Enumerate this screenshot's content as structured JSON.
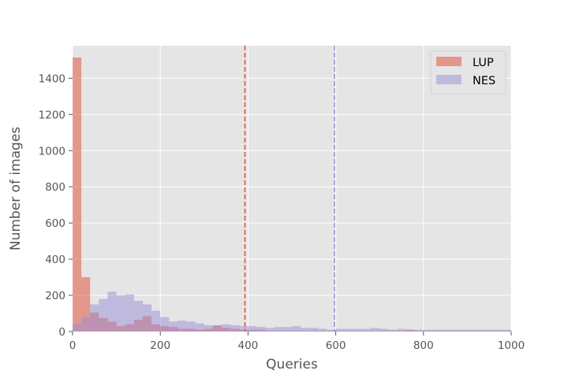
{
  "chart_data": {
    "type": "histogram",
    "xlabel": "Queries",
    "ylabel": "Number of images",
    "xlim": [
      0,
      1000
    ],
    "ylim": [
      0,
      1580
    ],
    "x_ticks": [
      0,
      200,
      400,
      600,
      800,
      1000
    ],
    "y_ticks": [
      0,
      200,
      400,
      600,
      800,
      1000,
      1200,
      1400
    ],
    "grid": true,
    "legend_position": "top-right",
    "bin_width": 20,
    "series": [
      {
        "name": "LUP",
        "color": "#E24A33",
        "opacity": 0.5,
        "bin_starts": [
          0,
          20,
          40,
          60,
          80,
          100,
          120,
          140,
          160,
          180,
          200,
          220,
          240,
          260,
          280,
          300,
          320,
          340,
          360,
          380,
          400,
          420,
          440,
          460,
          480,
          500,
          520,
          540,
          560,
          580,
          600,
          620,
          640,
          660,
          680,
          700,
          720,
          740,
          760,
          780,
          800,
          820,
          840,
          860,
          880,
          900,
          920,
          940,
          960,
          980
        ],
        "values": [
          1515,
          300,
          105,
          75,
          55,
          30,
          40,
          65,
          85,
          40,
          30,
          25,
          15,
          15,
          10,
          15,
          35,
          20,
          15,
          10,
          10,
          10,
          5,
          5,
          5,
          5,
          5,
          5,
          5,
          5,
          5,
          5,
          5,
          5,
          5,
          5,
          5,
          5,
          10,
          5,
          5,
          5,
          5,
          5,
          5,
          5,
          5,
          5,
          5,
          5
        ],
        "mean_line": 393,
        "mean_line_color": "#E24A33"
      },
      {
        "name": "NES",
        "color": "#988ED5",
        "opacity": 0.5,
        "bin_starts": [
          0,
          20,
          40,
          60,
          80,
          100,
          120,
          140,
          160,
          180,
          200,
          220,
          240,
          260,
          280,
          300,
          320,
          340,
          360,
          380,
          400,
          420,
          440,
          460,
          480,
          500,
          520,
          540,
          560,
          580,
          600,
          620,
          640,
          660,
          680,
          700,
          720,
          740,
          760,
          780,
          800,
          820,
          840,
          860,
          880,
          900,
          920,
          940,
          960,
          980
        ],
        "values": [
          40,
          80,
          150,
          180,
          220,
          200,
          205,
          170,
          150,
          115,
          80,
          55,
          60,
          55,
          45,
          35,
          30,
          40,
          35,
          30,
          30,
          25,
          20,
          25,
          25,
          30,
          20,
          20,
          15,
          10,
          15,
          15,
          15,
          15,
          20,
          15,
          10,
          15,
          10,
          10,
          10,
          10,
          10,
          10,
          10,
          10,
          10,
          10,
          10,
          10
        ],
        "mean_line": 597,
        "mean_line_color": "#988ED5"
      }
    ]
  }
}
